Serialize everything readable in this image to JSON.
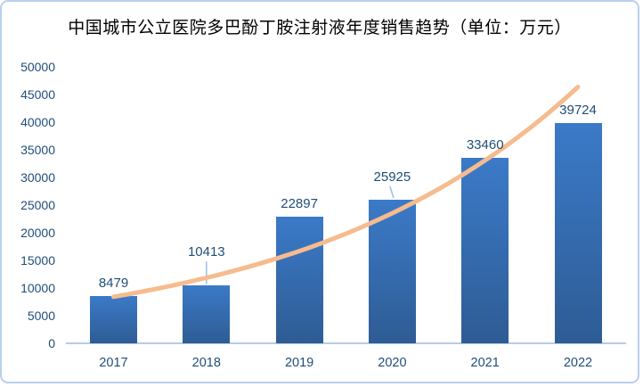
{
  "chart_data": {
    "type": "bar",
    "title": "中国城市公立医院多巴酚丁胺注射液年度销售趋势（单位：万元）",
    "unit": "万元",
    "categories": [
      "2017",
      "2018",
      "2019",
      "2020",
      "2021",
      "2022"
    ],
    "values": [
      8479,
      10413,
      22897,
      25925,
      33460,
      39724
    ],
    "data_labels": [
      "8479",
      "10413",
      "22897",
      "25925",
      "33460",
      "39724"
    ],
    "ylim": [
      0,
      50000
    ],
    "ytick_step": 5000,
    "yticks": [
      0,
      5000,
      10000,
      15000,
      20000,
      25000,
      30000,
      35000,
      40000,
      45000,
      50000
    ],
    "grid": false,
    "legend": "none",
    "trendline": {
      "type": "exponential",
      "values_at_categories": [
        8400,
        11840,
        16650,
        23500,
        33040,
        46300
      ]
    },
    "colors": {
      "bar_gradient_top": "#3b7ac8",
      "bar_gradient_bottom": "#2e5c94",
      "trendline": "#f6bb8e",
      "axis_labels": "#1f4e79",
      "data_labels": "#1f4e79",
      "axis_line": "#b8cce4",
      "leader_line": "#9dc3e6",
      "frame_border": "#b9cfec",
      "title_text": "#000000",
      "background": "#ffffff"
    }
  }
}
